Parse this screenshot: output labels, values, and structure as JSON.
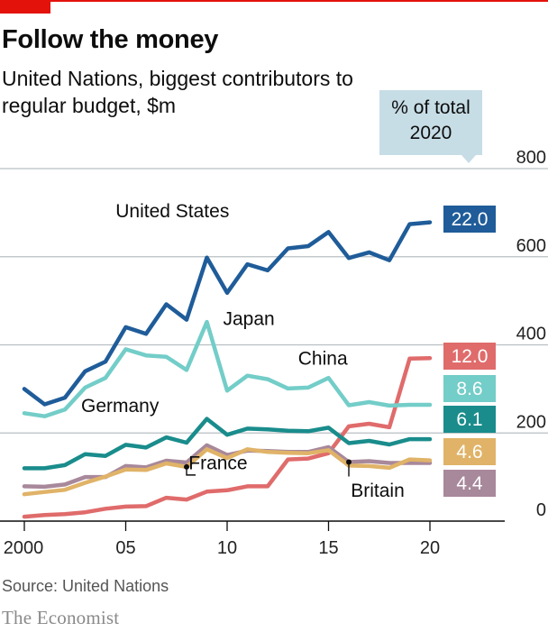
{
  "title": "Follow the money",
  "subtitle": "United Nations, biggest contributors to regular budget, $m",
  "share_header": "% of total 2020",
  "source": "Source: United Nations",
  "brand": "The Economist",
  "colors": {
    "accent_red": "#e3120b",
    "grid": "#b9bfc3",
    "baseline": "#0d0d0d"
  },
  "chart_data": {
    "type": "line",
    "title": "Follow the money",
    "subtitle": "United Nations, biggest contributors to regular budget, $m",
    "x": [
      2000,
      2001,
      2002,
      2003,
      2004,
      2005,
      2006,
      2007,
      2008,
      2009,
      2010,
      2011,
      2012,
      2013,
      2014,
      2015,
      2016,
      2017,
      2018,
      2019,
      2020
    ],
    "xlim": [
      1999.8,
      2021
    ],
    "ylim": [
      0,
      800
    ],
    "x_ticks": [
      {
        "value": 2000,
        "label": "2000"
      },
      {
        "value": 2005,
        "label": "05"
      },
      {
        "value": 2010,
        "label": "10"
      },
      {
        "value": 2015,
        "label": "15"
      },
      {
        "value": 2020,
        "label": "20"
      }
    ],
    "y_ticks": [
      {
        "value": 0,
        "label": "0"
      },
      {
        "value": 200,
        "label": "200"
      },
      {
        "value": 400,
        "label": "400"
      },
      {
        "value": 600,
        "label": "600"
      },
      {
        "value": 800,
        "label": "800"
      }
    ],
    "grid": true,
    "axis_side": "right",
    "series": [
      {
        "name": "United States",
        "color": "#1f5c99",
        "share_2020": "22.0",
        "values": [
          300,
          265,
          280,
          340,
          362,
          440,
          425,
          492,
          457,
          598,
          518,
          583,
          569,
          619,
          624,
          656,
          597,
          610,
          592,
          674,
          678
        ]
      },
      {
        "name": "Japan",
        "color": "#73cdc8",
        "share_2020": "8.6",
        "values": [
          245,
          238,
          253,
          303,
          325,
          390,
          376,
          373,
          343,
          452,
          296,
          330,
          322,
          301,
          303,
          325,
          263,
          270,
          262,
          264,
          264
        ]
      },
      {
        "name": "China",
        "color": "#e06b6b",
        "share_2020": "12.0",
        "values": [
          10,
          14,
          16,
          20,
          28,
          33,
          34,
          53,
          49,
          67,
          70,
          79,
          79,
          140,
          142,
          154,
          215,
          221,
          213,
          369,
          370
        ]
      },
      {
        "name": "Germany",
        "color": "#1a8c8c",
        "share_2020": "6.1",
        "values": [
          120,
          120,
          127,
          152,
          148,
          173,
          167,
          190,
          178,
          232,
          196,
          210,
          208,
          205,
          204,
          212,
          177,
          182,
          174,
          186,
          186
        ]
      },
      {
        "name": "France",
        "color": "#e0b368",
        "share_2020": "4.6",
        "values": [
          61,
          66,
          71,
          87,
          101,
          117,
          116,
          131,
          123,
          163,
          143,
          163,
          157,
          155,
          154,
          161,
          126,
          125,
          121,
          140,
          138
        ]
      },
      {
        "name": "Britain",
        "color": "#a8889b",
        "share_2020": "4.4",
        "values": [
          79,
          78,
          83,
          100,
          100,
          125,
          122,
          137,
          133,
          172,
          150,
          160,
          159,
          157,
          157,
          168,
          134,
          136,
          132,
          132,
          132
        ]
      }
    ],
    "labels": [
      {
        "text": "United States",
        "series": "United States",
        "x": 2004.5,
        "y": 690
      },
      {
        "text": "Japan",
        "series": "Japan",
        "x": 2009.8,
        "y": 445
      },
      {
        "text": "China",
        "series": "China",
        "x": 2013.5,
        "y": 355
      },
      {
        "text": "Germany",
        "series": "Germany",
        "x": 2002.8,
        "y": 248
      },
      {
        "text": "France",
        "series": "France",
        "x": 2008.1,
        "y": 118
      },
      {
        "text": "Britain",
        "series": "Britain",
        "x": 2016.1,
        "y": 55
      }
    ]
  }
}
